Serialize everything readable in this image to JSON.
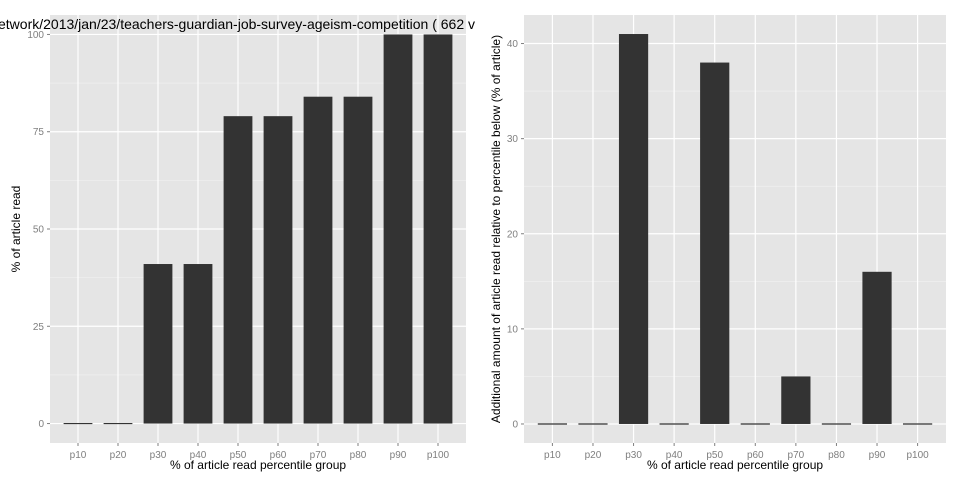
{
  "page_title": "etwork/2013/jan/23/teachers-guardian-job-survey-ageism-competition ( 662 v",
  "chart_data": [
    {
      "type": "bar",
      "title": "",
      "xlabel": "% of article read percentile group",
      "ylabel": "% of article read",
      "categories": [
        "p10",
        "p20",
        "p30",
        "p40",
        "p50",
        "p60",
        "p70",
        "p80",
        "p90",
        "p100"
      ],
      "values": [
        0,
        0,
        41,
        41,
        79,
        79,
        84,
        84,
        100,
        100
      ],
      "ylim": [
        -5,
        105
      ],
      "yticks": [
        0,
        25,
        50,
        75,
        100
      ],
      "ytick_labels": [
        "0",
        "25",
        "50",
        "75",
        "100"
      ],
      "grid": true,
      "panel_background": "#e5e5e5",
      "grid_color": "#ffffff",
      "bar_color": "#333333"
    },
    {
      "type": "bar",
      "title": "",
      "xlabel": "% of article read percentile group",
      "ylabel": "Additional amount of article read relative to percentile below (% of article)",
      "categories": [
        "p10",
        "p20",
        "p30",
        "p40",
        "p50",
        "p60",
        "p70",
        "p80",
        "p90",
        "p100"
      ],
      "values": [
        0,
        0,
        41,
        0,
        38,
        0,
        5,
        0,
        16,
        0
      ],
      "ylim": [
        -2,
        43
      ],
      "yticks": [
        0,
        10,
        20,
        30,
        40
      ],
      "ytick_labels": [
        "0",
        "10",
        "20",
        "30",
        "40"
      ],
      "grid": true,
      "panel_background": "#e5e5e5",
      "grid_color": "#ffffff",
      "bar_color": "#333333"
    }
  ]
}
